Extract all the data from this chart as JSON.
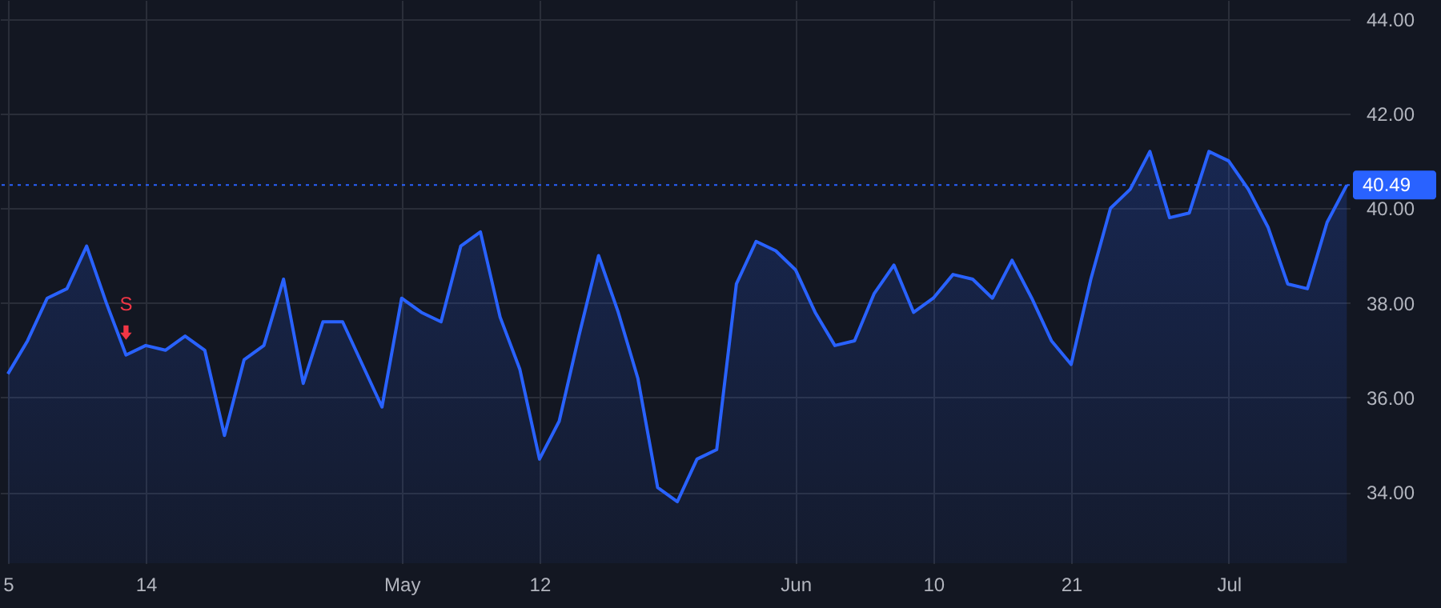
{
  "chart_data": {
    "type": "area",
    "categories": [
      "5",
      null,
      null,
      null,
      null,
      null,
      null,
      "14",
      null,
      null,
      null,
      null,
      null,
      null,
      null,
      null,
      null,
      null,
      null,
      null,
      "May",
      null,
      null,
      null,
      null,
      null,
      null,
      "12",
      null,
      null,
      null,
      null,
      null,
      null,
      null,
      null,
      null,
      null,
      null,
      null,
      "Jun",
      null,
      null,
      null,
      null,
      null,
      null,
      "10",
      null,
      null,
      null,
      null,
      null,
      null,
      "21",
      null,
      null,
      null,
      null,
      null,
      null,
      null,
      "Jul",
      null,
      null,
      null,
      null,
      null,
      null
    ],
    "series": [
      {
        "color": "#2962ff",
        "values": [
          36.5,
          37.2,
          38.1,
          38.3,
          39.2,
          38.0,
          36.9,
          37.1,
          37.0,
          37.3,
          37.0,
          35.2,
          36.8,
          37.1,
          38.5,
          36.3,
          37.6,
          37.6,
          36.7,
          35.8,
          38.1,
          37.8,
          37.6,
          39.2,
          39.5,
          37.7,
          36.6,
          34.7,
          35.5,
          37.3,
          39.0,
          37.8,
          36.4,
          34.1,
          33.8,
          34.7,
          34.9,
          38.4,
          39.3,
          39.1,
          38.7,
          37.8,
          37.1,
          37.2,
          38.2,
          38.8,
          37.8,
          38.1,
          38.6,
          38.5,
          38.1,
          38.9,
          38.1,
          37.2,
          36.7,
          38.5,
          40.0,
          40.4,
          41.2,
          39.8,
          39.9,
          41.2,
          41.0,
          40.4,
          39.6,
          38.4,
          38.3,
          39.7,
          40.49
        ]
      }
    ],
    "ylim": [
      32.5,
      44.4
    ],
    "yticks": [
      {
        "value": 34,
        "label": "34.00"
      },
      {
        "value": 36,
        "label": "36.00"
      },
      {
        "value": 38,
        "label": "38.00"
      },
      {
        "value": 40,
        "label": "40.00"
      },
      {
        "value": 42,
        "label": "42.00"
      },
      {
        "value": 44,
        "label": "44.00"
      }
    ],
    "grid": true,
    "marker": "none",
    "ref_lines": [
      {
        "axis": "y",
        "value": 40.49,
        "label": "40.49",
        "color": "#2962ff",
        "line_style": "dotted"
      }
    ],
    "annotations": [
      "S"
    ]
  }
}
